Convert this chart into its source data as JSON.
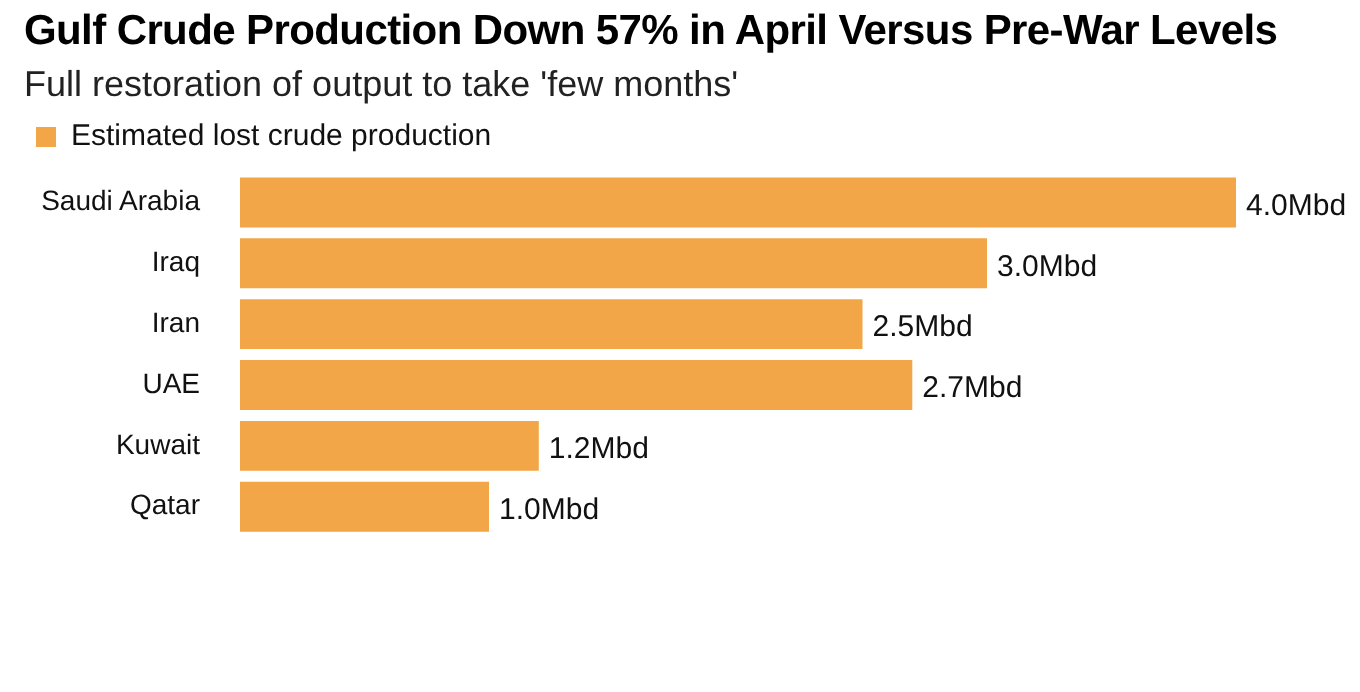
{
  "chart_data": {
    "type": "bar",
    "orientation": "horizontal",
    "title": "Gulf Crude Production Down 57% in April Versus Pre-War Levels",
    "subtitle": "Full restoration of output to take 'few months'",
    "categories": [
      "Saudi Arabia",
      "Iraq",
      "Iran",
      "UAE",
      "Kuwait",
      "Qatar"
    ],
    "series": [
      {
        "name": "Estimated lost crude production",
        "color": "#f2a647",
        "values": [
          4.0,
          3.0,
          2.5,
          2.7,
          1.2,
          1.0
        ],
        "value_labels": [
          "4.0Mbd",
          "3.0Mbd",
          "2.5Mbd",
          "2.7Mbd",
          "1.2Mbd",
          "1.0Mbd"
        ]
      }
    ],
    "legend": "top left"
  }
}
